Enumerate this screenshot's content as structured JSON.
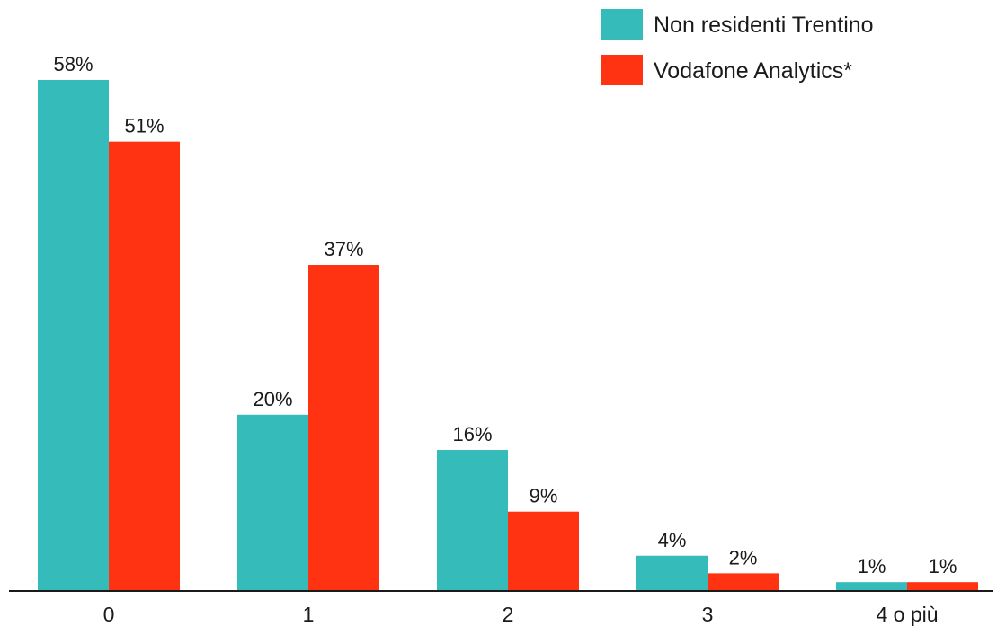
{
  "chart_data": {
    "type": "bar",
    "categories": [
      "0",
      "1",
      "2",
      "3",
      "4 o più"
    ],
    "series": [
      {
        "name": "Non residenti Trentino",
        "values": [
          58,
          20,
          16,
          4,
          1
        ],
        "labels": [
          "58%",
          "20%",
          "16%",
          "4%",
          "1%"
        ],
        "color": "#35BBBA"
      },
      {
        "name": "Vodafone Analytics*",
        "values": [
          51,
          37,
          9,
          2,
          1
        ],
        "labels": [
          "51%",
          "37%",
          "9%",
          "2%",
          "1%"
        ],
        "color": "#FF3312"
      }
    ],
    "unit": "%",
    "ylim": [
      0,
      58
    ],
    "grid": false,
    "y_axis_visible": false,
    "legend_position": "top-right"
  }
}
